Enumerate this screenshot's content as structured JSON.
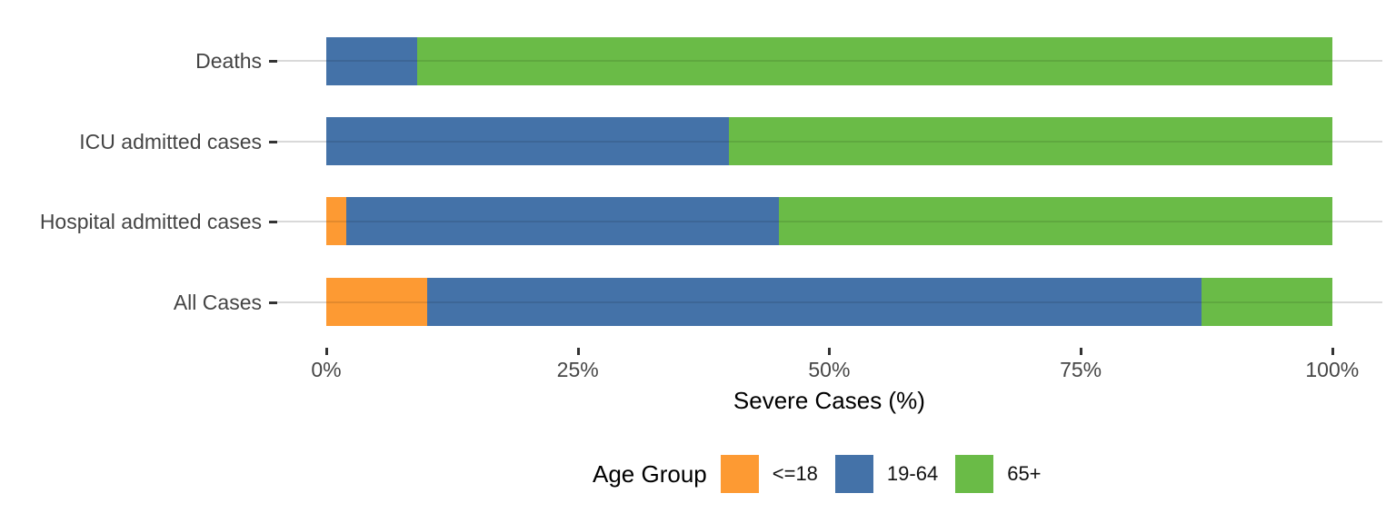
{
  "chart_data": {
    "type": "bar",
    "orientation": "horizontal",
    "stacked": true,
    "unit": "percent",
    "title": "",
    "xlabel": "Severe Cases (%)",
    "ylabel": "",
    "categories": [
      "Deaths",
      "ICU admitted cases",
      "Hospital admitted cases",
      "All Cases"
    ],
    "series": [
      {
        "name": "<=18",
        "color": "#FD9A33",
        "values": [
          0,
          0,
          2,
          10
        ]
      },
      {
        "name": "19-64",
        "color": "#4472A8",
        "values": [
          9,
          40,
          43,
          77
        ]
      },
      {
        "name": "65+",
        "color": "#6ABB47",
        "values": [
          91,
          60,
          55,
          13
        ]
      }
    ],
    "xlim": [
      0,
      100
    ],
    "x_ticks": [
      0,
      25,
      50,
      75,
      100
    ],
    "x_tick_labels": [
      "0%",
      "25%",
      "50%",
      "75%",
      "100%"
    ],
    "grid": "horizontal major gridlines only, light gray, white background",
    "legend": {
      "title": "Age Group",
      "position": "bottom"
    }
  },
  "style_colors": {
    "gridline": "#d9d9d9",
    "tick_mark": "#333333",
    "axis_text": "#464646",
    "axis_title": "#000000"
  }
}
